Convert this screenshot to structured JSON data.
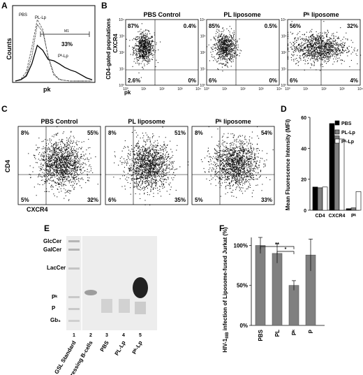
{
  "panel_labels": {
    "A": "A",
    "B": "B",
    "C": "C",
    "D": "D",
    "E": "E",
    "F": "F"
  },
  "colors": {
    "black": "#000000",
    "gray": "#808080",
    "white": "#ffffff",
    "dot": "#111111",
    "gel_band": "#222222"
  },
  "chart_data": [
    {
      "id": "A",
      "type": "line",
      "xlabel": "pk",
      "ylabel": "Counts",
      "gate": {
        "label": "M1",
        "percent": "33%"
      },
      "series": [
        {
          "name": "PBS",
          "style": "dotted",
          "values": [
            0,
            2,
            10,
            40,
            92,
            80,
            40,
            12,
            3,
            1,
            0,
            0,
            0,
            0,
            0
          ]
        },
        {
          "name": "PL-Lp",
          "style": "dashed",
          "values": [
            0,
            3,
            15,
            55,
            100,
            84,
            38,
            10,
            2,
            1,
            0,
            0,
            0,
            0,
            0
          ]
        },
        {
          "name": "Pᵏ-Lp",
          "style": "solid",
          "values": [
            0,
            2,
            8,
            28,
            58,
            50,
            35,
            33,
            28,
            22,
            18,
            15,
            10,
            5,
            2
          ]
        }
      ]
    },
    {
      "id": "B",
      "type": "scatter",
      "ylabel": "CXCR4",
      "ylabel2": "CD4-gated populations",
      "xlabel": "pk",
      "axis_scale": "log",
      "tick_labels": [
        "10⁰",
        "10¹",
        "10²",
        "10³",
        "10⁴"
      ],
      "plots": [
        {
          "title": "PBS Control",
          "quadrants": {
            "ul": "87%",
            "ur": "0.4%",
            "ll": "2.6%",
            "lr": "0%"
          },
          "cloud": {
            "cx": 1.0,
            "cy": 2.3,
            "sx": 0.28,
            "sy": 0.45
          }
        },
        {
          "title": "PL liposome",
          "quadrants": {
            "ul": "85%",
            "ur": "0.5%",
            "ll": "6%",
            "lr": "0%"
          },
          "cloud": {
            "cx": 1.0,
            "cy": 2.3,
            "sx": 0.3,
            "sy": 0.45
          }
        },
        {
          "title": "Pᵏ liposome",
          "quadrants": {
            "ul": "56%",
            "ur": "32%",
            "ll": "6%",
            "lr": "4%"
          },
          "cloud": {
            "cx": 1.7,
            "cy": 2.3,
            "sx": 0.75,
            "sy": 0.45
          }
        }
      ]
    },
    {
      "id": "C",
      "type": "scatter",
      "ylabel": "CD4",
      "xlabel": "CXCR4",
      "plots": [
        {
          "title": "PBS Control",
          "quadrants": {
            "ul": "8%",
            "ur": "55%",
            "ll": "5%",
            "lr": "32%"
          },
          "cloud": {
            "cx": 2.1,
            "cy": 2.1,
            "sx": 0.55,
            "sy": 0.6
          }
        },
        {
          "title": "PL liposome",
          "quadrants": {
            "ul": "8%",
            "ur": "51%",
            "ll": "6%",
            "lr": "35%"
          },
          "cloud": {
            "cx": 2.1,
            "cy": 2.0,
            "sx": 0.55,
            "sy": 0.6
          }
        },
        {
          "title": "Pᵏ liposome",
          "quadrants": {
            "ul": "8%",
            "ur": "54%",
            "ll": "5%",
            "lr": "33%"
          },
          "cloud": {
            "cx": 2.1,
            "cy": 2.1,
            "sx": 0.55,
            "sy": 0.6
          }
        }
      ]
    },
    {
      "id": "D",
      "type": "bar",
      "ylabel": "Mean Fluorescence Intensity (MFI)",
      "ylim": [
        0,
        60
      ],
      "yticks": [
        "0",
        "20",
        "40",
        "60"
      ],
      "categories": [
        "CD4",
        "CXCR4",
        "Pᵏ"
      ],
      "series": [
        {
          "name": "PBS",
          "color": "#000000",
          "values": [
            15,
            56,
            1
          ]
        },
        {
          "name": "PL-Lp",
          "color": "#808080",
          "values": [
            14.5,
            48,
            1.5
          ]
        },
        {
          "name": "Pᵏ-Lp",
          "color": "#ffffff",
          "values": [
            15,
            46,
            12
          ]
        }
      ]
    },
    {
      "id": "E",
      "type": "table",
      "band_labels": [
        "GlcCer",
        "GalCer",
        "LacCer",
        "Pᵏ",
        "P",
        "Gb₅"
      ],
      "lanes": [
        {
          "number": "1",
          "label": "GSL Standard"
        },
        {
          "number": "2",
          "label": "Pᵏ expressing B-cells"
        },
        {
          "number": "3",
          "label": "PBS"
        },
        {
          "number": "4",
          "label": "PL-Lp"
        },
        {
          "number": "5",
          "label": "Pᵏ-Lp"
        }
      ]
    },
    {
      "id": "F",
      "type": "bar",
      "ylabel_part1": "HIV-1",
      "ylabel_sub": "IIIB",
      "ylabel_part2": " infection of Liposome-fused Jurkat (%)",
      "ylim": [
        0,
        110
      ],
      "yticks": [
        "0%",
        "50%",
        "100%"
      ],
      "categories": [
        "PBS",
        "PL",
        "Pᵏ",
        "P"
      ],
      "values": [
        100,
        90,
        50,
        88
      ],
      "errors": [
        10,
        12,
        6,
        20
      ],
      "color": "#808080",
      "significance": [
        "**",
        "*"
      ]
    }
  ]
}
